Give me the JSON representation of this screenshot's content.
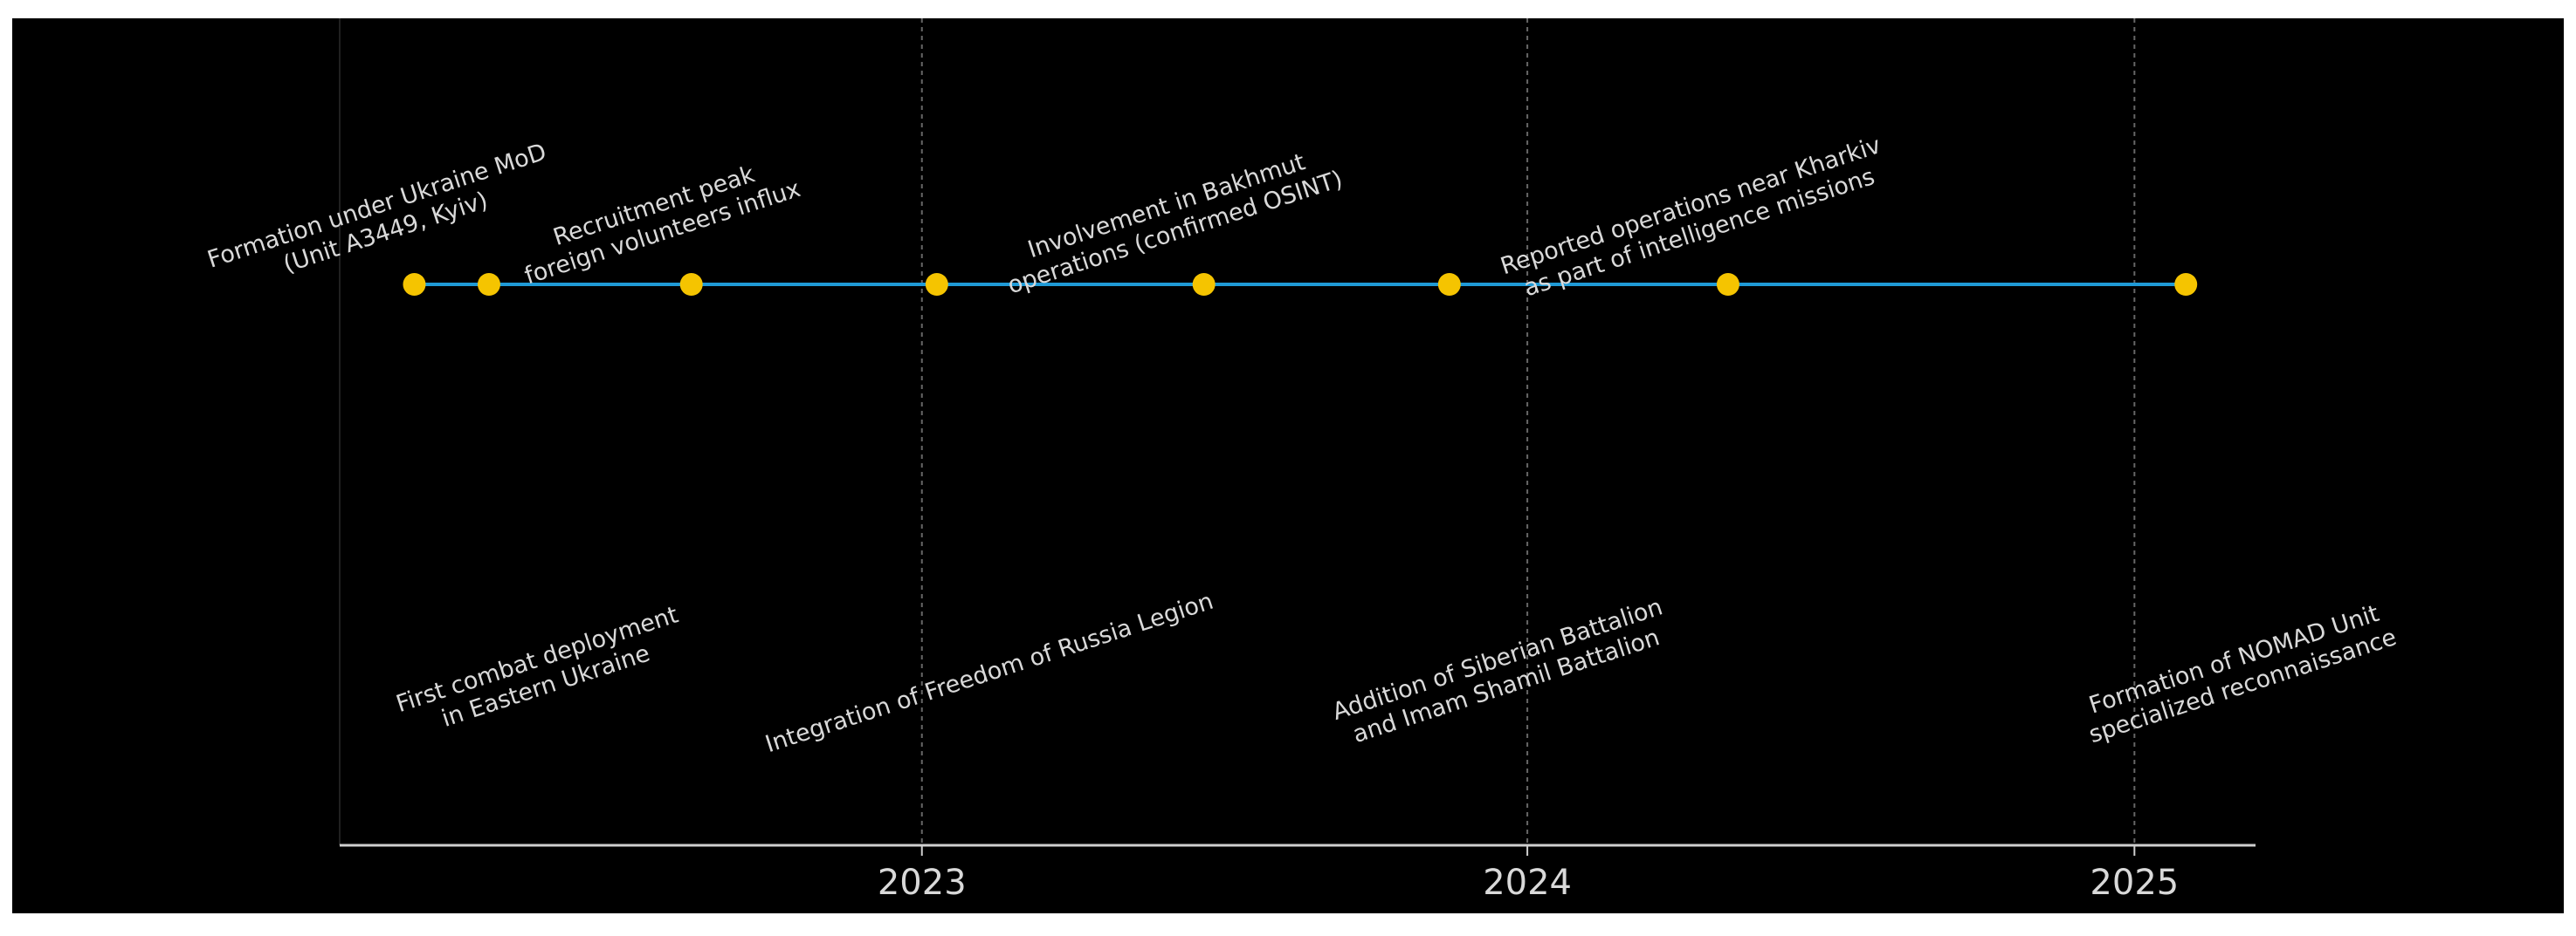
{
  "chart_data": {
    "type": "scatter",
    "title": "",
    "xlabel": "",
    "ylabel": "",
    "x_axis_type": "date",
    "xlim": [
      "2022-01-15",
      "2025-03-15"
    ],
    "xticks": [
      "2023",
      "2024",
      "2025"
    ],
    "grid": "vertical dashed at year ticks",
    "colors": {
      "background": "#000000",
      "line": "#1f9ad6",
      "marker": "#f5c400",
      "text": "#d9d9d9"
    },
    "events": [
      {
        "date": "2022-03-01",
        "side": "top",
        "lines": [
          "Formation under Ukraine MoD",
          "(Unit A3449, Kyiv)"
        ]
      },
      {
        "date": "2022-04-15",
        "side": "bottom",
        "lines": [
          "First combat deployment",
          "in Eastern Ukraine"
        ]
      },
      {
        "date": "2022-08-15",
        "side": "top",
        "lines": [
          "Recruitment peak",
          "foreign volunteers influx"
        ]
      },
      {
        "date": "2023-01-10",
        "side": "bottom",
        "lines": [
          "Integration of Freedom of Russia Legion"
        ]
      },
      {
        "date": "2023-06-20",
        "side": "top",
        "lines": [
          "Involvement in Bakhmut",
          "operations (confirmed OSINT)"
        ]
      },
      {
        "date": "2023-11-15",
        "side": "bottom",
        "lines": [
          "Addition of Siberian Battalion",
          "and Imam Shamil Battalion"
        ]
      },
      {
        "date": "2024-05-01",
        "side": "top",
        "lines": [
          "Reported operations near Kharkiv",
          "as part of intelligence missions"
        ]
      },
      {
        "date": "2025-02-01",
        "side": "bottom",
        "lines": [
          "Formation of NOMAD Unit",
          "specialized reconnaissance"
        ]
      }
    ]
  }
}
